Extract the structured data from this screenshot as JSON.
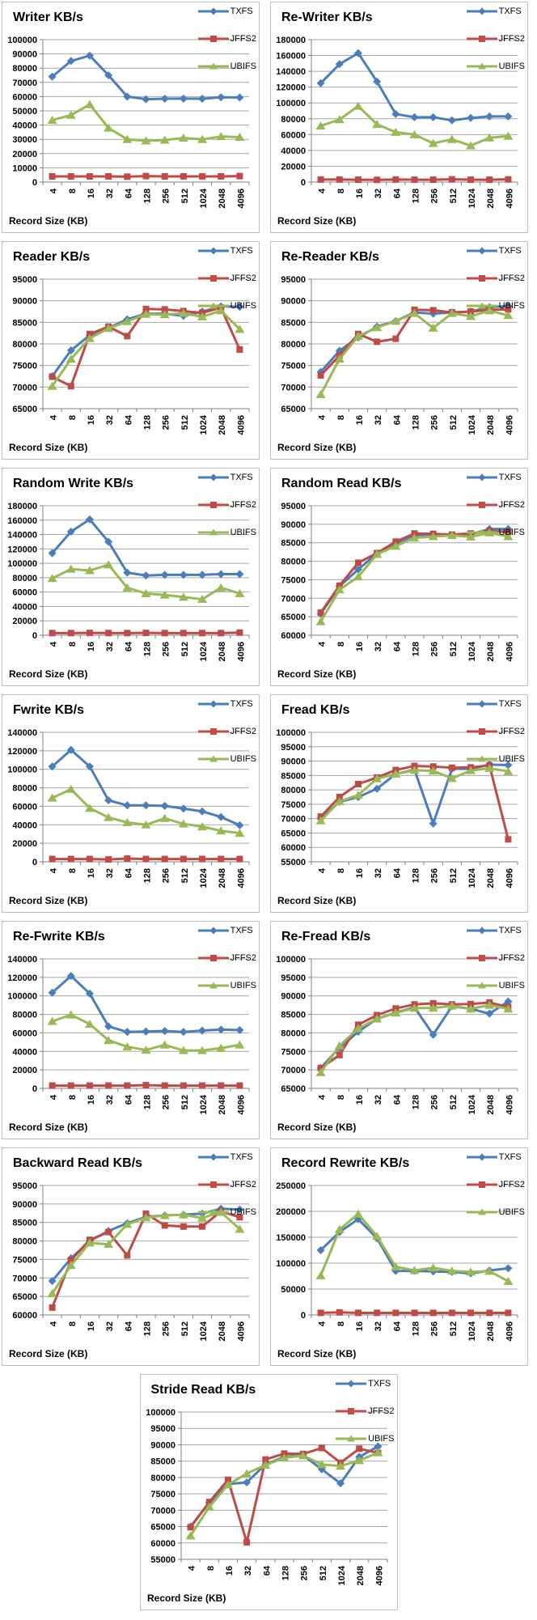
{
  "chart_data": {
    "type": "line",
    "xlabel": "Record Size (KB)",
    "categories": [
      "4",
      "8",
      "16",
      "32",
      "64",
      "128",
      "256",
      "512",
      "1024",
      "2048",
      "4096"
    ],
    "legend_position": "top-right",
    "series_names": [
      "TXFS",
      "JFFS2",
      "UBIFS"
    ],
    "colors": {
      "TXFS": "#4A7EBB",
      "JFFS2": "#BE4B48",
      "UBIFS": "#98B954"
    },
    "markers": {
      "TXFS": "diamond",
      "JFFS2": "square",
      "UBIFS": "triangle"
    },
    "style": {
      "grid_color": "#A6A6A6",
      "axis_color": "#808080",
      "border_color": "#BDBDBD",
      "text_color": "#000000"
    },
    "charts": [
      {
        "title": "Writer KB/s",
        "ylim": [
          0,
          100000
        ],
        "ystep": 10000,
        "series": {
          "TXFS": [
            74000,
            85000,
            88800,
            75000,
            60000,
            58200,
            58500,
            58600,
            58500,
            59500,
            59400
          ],
          "JFFS2": [
            4000,
            4000,
            4000,
            4000,
            3800,
            4200,
            4000,
            4000,
            4000,
            4000,
            4200
          ],
          "UBIFS": [
            43500,
            47000,
            54500,
            38000,
            30000,
            29000,
            29500,
            31000,
            30000,
            32000,
            31500
          ]
        }
      },
      {
        "title": "Re-Writer KB/s",
        "ylim": [
          0,
          180000
        ],
        "ystep": 20000,
        "series": {
          "TXFS": [
            125000,
            149000,
            163000,
            127000,
            86000,
            82000,
            82000,
            78000,
            81000,
            83000,
            83000
          ],
          "JFFS2": [
            3200,
            3200,
            3000,
            2800,
            3200,
            3000,
            3000,
            3400,
            3000,
            3000,
            3400
          ],
          "UBIFS": [
            71000,
            79000,
            96000,
            73000,
            63000,
            60000,
            49000,
            54000,
            46000,
            56000,
            58000
          ]
        }
      },
      {
        "title": "Reader KB/s",
        "ylim": [
          65000,
          95000
        ],
        "ystep": 5000,
        "series": {
          "TXFS": [
            72500,
            78500,
            82000,
            83700,
            85700,
            87000,
            87000,
            86500,
            87500,
            88700,
            88600
          ],
          "JFFS2": [
            72400,
            70200,
            82300,
            84000,
            81800,
            88100,
            88000,
            87600,
            87200,
            88400,
            78700
          ],
          "UBIFS": [
            70200,
            76500,
            81300,
            83600,
            85200,
            86900,
            86800,
            87100,
            86300,
            87700,
            83400
          ]
        }
      },
      {
        "title": "Re-Reader KB/s",
        "ylim": [
          65000,
          95000
        ],
        "ystep": 5000,
        "series": {
          "TXFS": [
            73500,
            78400,
            81500,
            84000,
            85300,
            87300,
            87000,
            87300,
            87500,
            88500,
            88800
          ],
          "JFFS2": [
            72700,
            77300,
            82300,
            80500,
            81200,
            87900,
            87800,
            87300,
            87500,
            87900,
            88000
          ],
          "UBIFS": [
            68300,
            76500,
            81800,
            83800,
            85300,
            87100,
            83700,
            87100,
            86400,
            87700,
            86600
          ]
        }
      },
      {
        "title": "Random Write KB/s",
        "ylim": [
          0,
          180000
        ],
        "ystep": 20000,
        "series": {
          "TXFS": [
            114000,
            144000,
            161000,
            130000,
            87000,
            83000,
            84000,
            84000,
            84000,
            85000,
            85000
          ],
          "JFFS2": [
            3000,
            3000,
            3200,
            3000,
            3000,
            3200,
            3000,
            3000,
            3000,
            3000,
            3600
          ],
          "UBIFS": [
            79000,
            92000,
            90000,
            98000,
            66000,
            58000,
            56000,
            53000,
            50000,
            66000,
            58000
          ]
        }
      },
      {
        "title": "Random Read KB/s",
        "ylim": [
          60000,
          95000
        ],
        "ystep": 5000,
        "series": {
          "TXFS": [
            65800,
            73200,
            77800,
            82100,
            84800,
            87000,
            87300,
            87100,
            87300,
            88700,
            88700
          ],
          "JFFS2": [
            66100,
            73400,
            79600,
            82200,
            85300,
            87500,
            87400,
            87200,
            87500,
            88200,
            87900
          ],
          "UBIFS": [
            63700,
            72300,
            75800,
            81900,
            84100,
            86300,
            86700,
            87000,
            86600,
            87700,
            86700
          ]
        }
      },
      {
        "title": "Fwrite KB/s",
        "ylim": [
          0,
          140000
        ],
        "ystep": 20000,
        "series": {
          "TXFS": [
            103000,
            121000,
            103000,
            66500,
            61000,
            61000,
            60500,
            57500,
            54500,
            48500,
            39500
          ],
          "JFFS2": [
            3000,
            3000,
            3000,
            2500,
            3500,
            3000,
            3000,
            3000,
            3000,
            3000,
            3000
          ],
          "UBIFS": [
            69000,
            78500,
            58000,
            48000,
            42500,
            40000,
            47000,
            41000,
            38000,
            33500,
            31000
          ]
        }
      },
      {
        "title": "Fread KB/s",
        "ylim": [
          55000,
          100000
        ],
        "ystep": 5000,
        "series": {
          "TXFS": [
            70000,
            75800,
            77500,
            80400,
            85500,
            87000,
            68300,
            87300,
            87300,
            88800,
            88600
          ],
          "JFFS2": [
            70700,
            77500,
            82000,
            84300,
            86900,
            88300,
            88100,
            87700,
            87800,
            88500,
            62800
          ],
          "UBIFS": [
            69300,
            76000,
            78200,
            83900,
            85500,
            86800,
            86600,
            84000,
            86700,
            87500,
            86400
          ]
        }
      },
      {
        "title": "Re-Fwrite KB/s",
        "ylim": [
          0,
          140000
        ],
        "ystep": 20000,
        "series": {
          "TXFS": [
            103500,
            121500,
            102500,
            67000,
            61000,
            61500,
            62000,
            61000,
            62500,
            63500,
            63000
          ],
          "JFFS2": [
            3000,
            3000,
            3000,
            3000,
            3000,
            3500,
            3000,
            3000,
            3000,
            3000,
            3000
          ],
          "UBIFS": [
            72500,
            79500,
            69500,
            52000,
            45000,
            41500,
            47000,
            41000,
            41000,
            43500,
            47000
          ]
        }
      },
      {
        "title": "Re-Fread KB/s",
        "ylim": [
          65000,
          100000
        ],
        "ystep": 5000,
        "series": {
          "TXFS": [
            70500,
            76000,
            80300,
            83800,
            85500,
            86900,
            79500,
            87200,
            86500,
            85200,
            88500
          ],
          "JFFS2": [
            70500,
            74000,
            82200,
            84800,
            86600,
            87700,
            88000,
            87700,
            87800,
            88200,
            87000
          ],
          "UBIFS": [
            69300,
            76500,
            81200,
            83800,
            85400,
            86700,
            86700,
            87300,
            86500,
            87500,
            86500
          ]
        }
      },
      {
        "title": "Backward Read KB/s",
        "ylim": [
          60000,
          95000
        ],
        "ystep": 5000,
        "series": {
          "TXFS": [
            69200,
            75300,
            80000,
            82700,
            84800,
            86500,
            86900,
            87100,
            87400,
            88700,
            88500
          ],
          "JFFS2": [
            62000,
            74800,
            80300,
            82400,
            76100,
            87400,
            84200,
            83900,
            83900,
            88000,
            86400
          ],
          "UBIFS": [
            65800,
            73400,
            79500,
            79100,
            84500,
            86300,
            86900,
            87100,
            86200,
            87800,
            83200
          ]
        }
      },
      {
        "title": "Record Rewrite KB/s",
        "ylim": [
          0,
          250000
        ],
        "ystep": 50000,
        "series": {
          "TXFS": [
            125000,
            160000,
            185000,
            148000,
            85000,
            85000,
            84000,
            83000,
            80000,
            86000,
            90000
          ],
          "JFFS2": [
            4000,
            5000,
            4000,
            4000,
            4000,
            4000,
            4000,
            4000,
            4000,
            4000,
            4000
          ],
          "UBIFS": [
            76000,
            165000,
            195000,
            152000,
            93000,
            86000,
            91000,
            85000,
            83000,
            84500,
            65000
          ]
        }
      },
      {
        "title": "Stride Read KB/s",
        "ylim": [
          55000,
          100000
        ],
        "ystep": 5000,
        "series": {
          "TXFS": [
            65000,
            72300,
            78000,
            78500,
            84000,
            86300,
            86800,
            82500,
            78200,
            86300,
            89500
          ],
          "JFFS2": [
            64800,
            72500,
            79300,
            60200,
            85500,
            87300,
            87200,
            89000,
            84500,
            88800,
            87500
          ],
          "UBIFS": [
            62200,
            71000,
            77800,
            81200,
            83800,
            86000,
            86700,
            84000,
            83500,
            85200,
            87600
          ]
        }
      }
    ]
  }
}
